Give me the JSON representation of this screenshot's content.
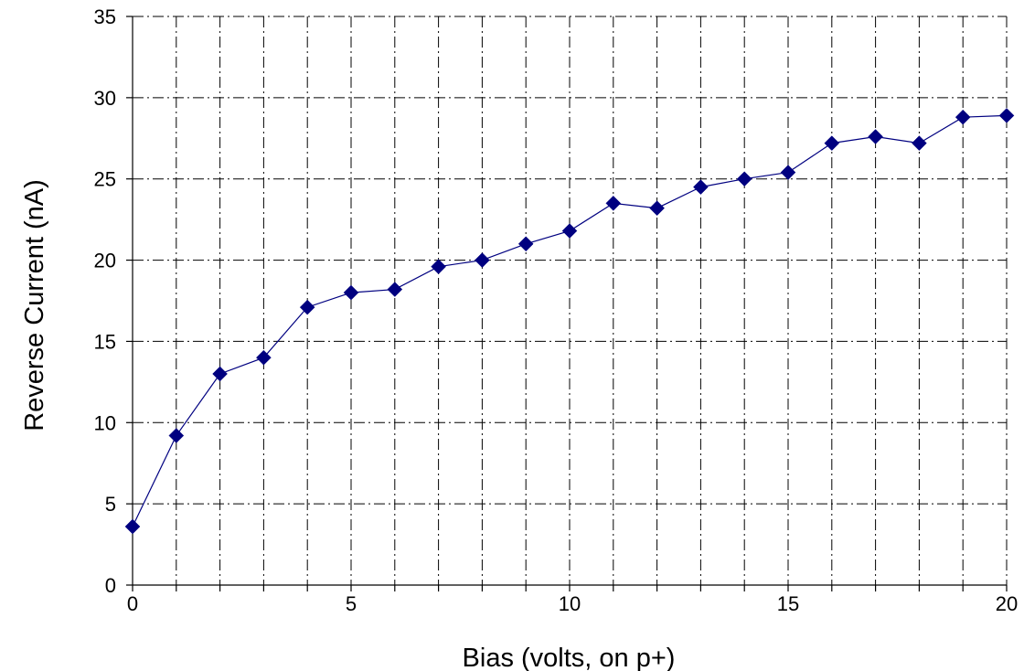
{
  "chart_data": {
    "type": "line",
    "x": [
      0,
      1,
      2,
      3,
      4,
      5,
      6,
      7,
      8,
      9,
      10,
      11,
      12,
      13,
      14,
      15,
      16,
      17,
      18,
      19,
      20
    ],
    "series": [
      {
        "values": [
          3.6,
          9.2,
          13.0,
          14.0,
          17.1,
          18.0,
          18.2,
          19.6,
          20.0,
          21.0,
          21.8,
          23.5,
          23.2,
          24.5,
          25.0,
          25.4,
          27.2,
          27.6,
          27.2,
          28.8,
          28.9
        ],
        "color": "#000080",
        "marker": "diamond"
      }
    ],
    "xlabel": "Bias (volts, on p+)",
    "ylabel": "Reverse Current (nA)",
    "xlim": [
      0,
      20
    ],
    "ylim": [
      0,
      35
    ],
    "x_ticks": [
      0,
      5,
      10,
      15,
      20
    ],
    "y_ticks": [
      0,
      5,
      10,
      15,
      20,
      25,
      30,
      35
    ],
    "x_tick_labels": [
      "0",
      "5",
      "10",
      "15",
      "20"
    ],
    "y_tick_labels": [
      "0",
      "5",
      "10",
      "15",
      "20",
      "25",
      "30",
      "35"
    ],
    "grid": true,
    "grid_color": "#000000"
  }
}
